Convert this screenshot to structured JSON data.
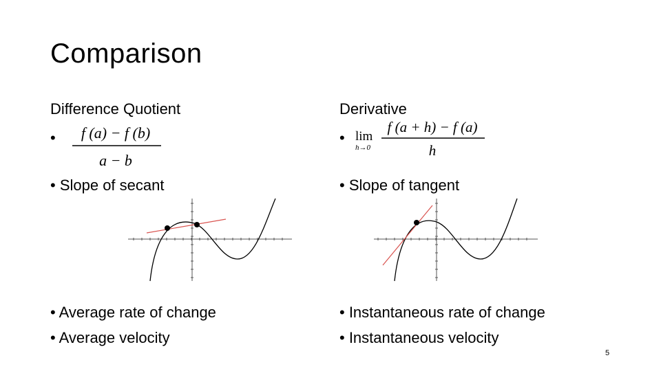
{
  "slide": {
    "title": "Comparison",
    "page_number": "5"
  },
  "left": {
    "heading": "Difference Quotient",
    "formula": {
      "numerator": "f (a) − f (b)",
      "denominator": "a − b"
    },
    "bullet_slope": "• Slope of secant",
    "bullet_rate": "• Average rate of change",
    "bullet_velocity": "• Average velocity"
  },
  "right": {
    "heading": "Derivative",
    "formula": {
      "lim": "lim",
      "lim_sub": "h→0",
      "numerator": "f (a + h) − f (a)",
      "denominator": "h"
    },
    "bullet_slope": "• Slope of tangent",
    "bullet_rate": "• Instantaneous rate of change",
    "bullet_velocity": "• Instantaneous velocity"
  },
  "colors": {
    "curve": "#000000",
    "secant_line": "#d9534f",
    "tangent_line": "#d9534f"
  }
}
